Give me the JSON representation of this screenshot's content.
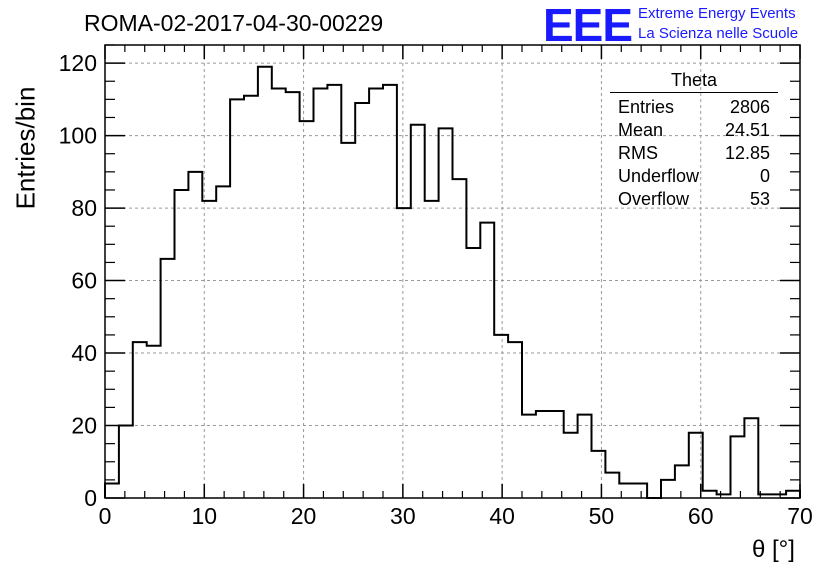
{
  "header": {
    "title": "ROMA-02-2017-04-30-00229"
  },
  "logo": {
    "mark": "EEE",
    "line1": "Extreme Energy Events",
    "line2": "La Scienza nelle Scuole"
  },
  "stats": {
    "title": "Theta",
    "rows": [
      {
        "label": "Entries",
        "value": "2806"
      },
      {
        "label": "Mean",
        "value": "24.51"
      },
      {
        "label": "RMS",
        "value": "12.85"
      },
      {
        "label": "Underflow",
        "value": "0"
      },
      {
        "label": "Overflow",
        "value": "53"
      }
    ]
  },
  "chart_data": {
    "type": "bar",
    "style": "step-histogram",
    "title": "ROMA-02-2017-04-30-00229",
    "xlabel": "θ [°]",
    "ylabel": "Entries/bin",
    "xlim": [
      0,
      70
    ],
    "ylim": [
      0,
      125
    ],
    "grid": true,
    "bin_width": 1.4,
    "x_ticks": [
      0,
      10,
      20,
      30,
      40,
      50,
      60,
      70
    ],
    "y_ticks": [
      0,
      20,
      40,
      60,
      80,
      100,
      120
    ],
    "x_tick_labels": [
      "0",
      "10",
      "20",
      "30",
      "40",
      "50",
      "60",
      "70"
    ],
    "y_tick_labels": [
      "0",
      "20",
      "40",
      "60",
      "80",
      "100",
      "120"
    ],
    "values": [
      4,
      20,
      43,
      42,
      66,
      85,
      90,
      82,
      86,
      110,
      111,
      119,
      113,
      112,
      104,
      113,
      114,
      98,
      109,
      113,
      114,
      80,
      103,
      82,
      102,
      88,
      69,
      76,
      45,
      43,
      23,
      24,
      24,
      18,
      23,
      13,
      7,
      4,
      4,
      0,
      5,
      9,
      18,
      2,
      1,
      17,
      22,
      1,
      1,
      2
    ],
    "line_color": "#000000",
    "grid_color": "#9a9a9a"
  }
}
